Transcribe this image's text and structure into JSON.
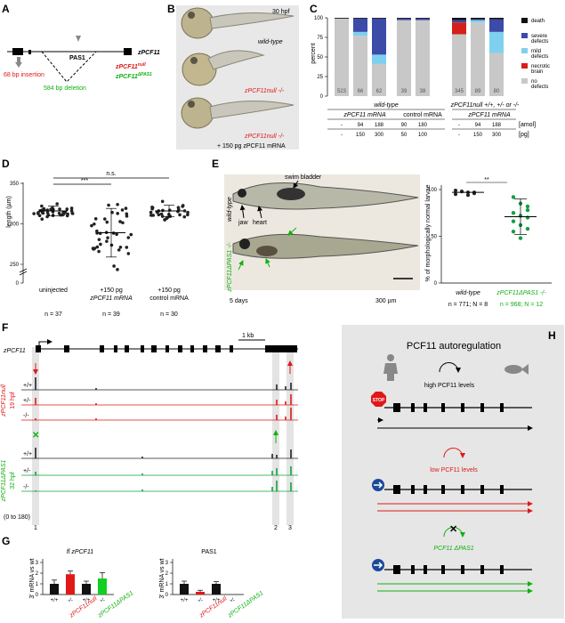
{
  "panels": {
    "A": "A",
    "B": "B",
    "C": "C",
    "D": "D",
    "E": "E",
    "F": "F",
    "G": "G",
    "H": "H"
  },
  "a": {
    "gene": "zPCF11",
    "pas1": "PAS1",
    "insertion": "68 bp insertion",
    "deletion": "584 bp deletion",
    "null_allele": "zPCF11",
    "null_sup": "null",
    "dpas_allele": "zPCF11",
    "dpas_sup": "ΔPAS1"
  },
  "b": {
    "hpf": "30 hpf",
    "wt": "wild-type",
    "null1": "zPCF11null -/-",
    "null2": "zPCF11null -/-",
    "rescue": "+ 150 pg zPCF11 mRNA"
  },
  "c_chart": {
    "ylabel": "percent",
    "yticks": [
      "0",
      "25",
      "50",
      "75",
      "100"
    ],
    "legend": [
      {
        "label": "death",
        "color": "#111111"
      },
      {
        "label": "severe defects",
        "color": "#3c4aa8"
      },
      {
        "label": "mild defects",
        "color": "#7fd0ee"
      },
      {
        "label": "necrotic brain",
        "color": "#d42018"
      },
      {
        "label": "no defects",
        "color": "#c8c8c8"
      }
    ],
    "group1": "wild-type",
    "group2": "zPCF11null +/+, +/- or -/-",
    "sub1": "zPCF11 mRNA",
    "sub2": "control mRNA",
    "sub3": "zPCF11 mRNA",
    "amol_label": "[amol]",
    "pg_label": "[pg]",
    "amol": [
      "-",
      "94",
      "188",
      "90",
      "180",
      "-",
      "94",
      "188"
    ],
    "pg": [
      "-",
      "150",
      "300",
      "50",
      "100",
      "-",
      "150",
      "300"
    ]
  },
  "chart_data": {
    "type": "bar",
    "stacked": true,
    "ylabel": "percent",
    "ylim": [
      0,
      100
    ],
    "categories": [
      "523",
      "66",
      "62",
      "39",
      "38",
      "345",
      "89",
      "80"
    ],
    "series": [
      {
        "name": "no defects",
        "values": [
          99,
          77,
          41,
          97,
          97,
          79,
          94,
          55
        ]
      },
      {
        "name": "necrotic brain",
        "values": [
          0,
          0,
          0,
          0,
          0,
          15,
          0,
          0
        ]
      },
      {
        "name": "mild defects",
        "values": [
          0,
          5,
          12,
          0,
          0,
          0,
          3,
          27
        ]
      },
      {
        "name": "severe defects",
        "values": [
          0,
          17,
          46,
          2,
          2,
          3,
          1,
          16
        ]
      },
      {
        "name": "death",
        "values": [
          1,
          1,
          1,
          1,
          1,
          3,
          2,
          2
        ]
      }
    ]
  },
  "d_chart": {
    "ylabel": "length (µm)",
    "yticks": [
      "0",
      "250",
      "300",
      "350"
    ],
    "groups": [
      {
        "label": "uninjected",
        "n": "n = 37",
        "mean": 316,
        "sd": 6
      },
      {
        "label": "+150 pg zPCF11 mRNA",
        "n": "n = 39",
        "mean": 289,
        "sd": 30
      },
      {
        "label": "+150 pg control mRNA",
        "n": "n = 30",
        "mean": 316,
        "sd": 7
      }
    ],
    "sig1": "***",
    "sig2": "n.s."
  },
  "e": {
    "wt": "wild-type",
    "mut": "zPCF11ΔPAS1 -/-",
    "swim": "swim bladder",
    "jaw": "jaw",
    "heart": "heart",
    "days": "5 days",
    "scale": "300 µm",
    "ylabel": "% of morphologically normal larvae",
    "yticks": [
      "0",
      "50",
      "100"
    ],
    "sig": "**",
    "x1": "wild-type",
    "x2": "zPCF11ΔPAS1 -/-",
    "n1": "n = 771; N = 8",
    "n2": "n = 968; N = 12",
    "wt_mean": 97,
    "mut_mean": 71
  },
  "f": {
    "gene": "zPCF11",
    "scale": "1 kb",
    "null_label": "zPCF11null",
    "null_hpf": "19 hpf",
    "dpas_label": "zPCF11ΔPAS1",
    "dpas_hpf": "32 hpf",
    "genotypes": [
      "+/+",
      "+/-",
      "-/-"
    ],
    "range": "(0 to 180)",
    "sites": [
      "1",
      "2",
      "3"
    ]
  },
  "g": {
    "title1": "fl zPCF11",
    "title2": "PAS1",
    "ylabel": "3' mRNA vs wt",
    "yticks": [
      "0",
      "1",
      "2",
      "3"
    ],
    "xlabels": [
      "+/+",
      "-/-",
      "+/+",
      "-/-"
    ],
    "allele1": "zPCF11null",
    "allele2": "zPCF11ΔPAS1",
    "fl_values": [
      1.0,
      1.9,
      1.0,
      1.5
    ],
    "pas1_values": [
      1.0,
      0.25,
      1.0,
      0.0
    ]
  },
  "h": {
    "title": "PCF11 autoregulation",
    "high": "high PCF11 levels",
    "low": "low PCF11 levels",
    "dpas": "PCF11 ΔPAS1",
    "stop": "STOP"
  }
}
